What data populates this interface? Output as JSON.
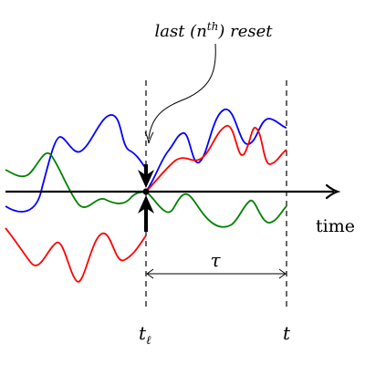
{
  "annotation": {
    "prefix": "last (n",
    "superscript": "th",
    "suffix": ") reset"
  },
  "axis": {
    "x_label": "time"
  },
  "markers": {
    "reset_time_base": "t",
    "reset_time_sub": "ℓ",
    "end_time": "t",
    "interval": "τ"
  },
  "colors": {
    "blue": "#0000ff",
    "red": "#ff0000",
    "green": "#008000",
    "axis": "#000000"
  }
}
